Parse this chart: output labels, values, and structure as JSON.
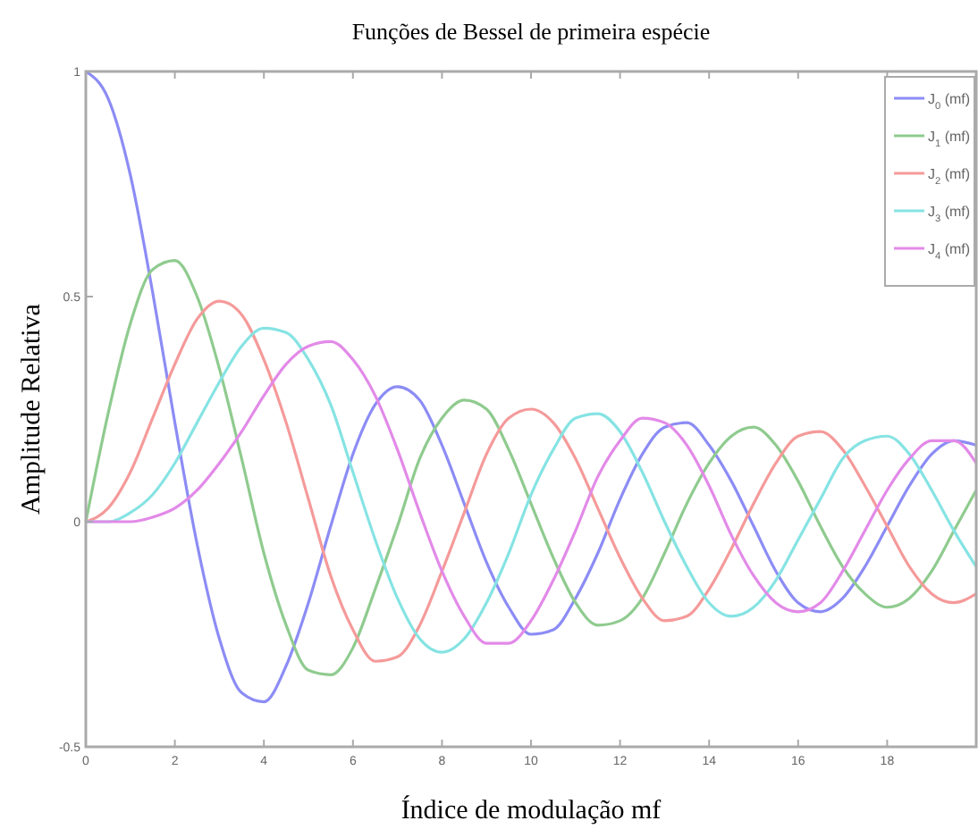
{
  "chart_data": {
    "type": "line",
    "title": "Funções de Bessel de primeira espécie",
    "xlabel": "Índice de modulação mf",
    "ylabel": "Amplitude Relativa",
    "x": [
      0,
      0.5,
      1,
      1.5,
      2,
      2.5,
      3,
      3.5,
      4,
      4.5,
      5,
      5.5,
      6,
      6.5,
      7,
      7.5,
      8,
      8.5,
      9,
      9.5,
      10,
      10.5,
      11,
      11.5,
      12,
      12.5,
      13,
      13.5,
      14,
      14.5,
      15,
      15.5,
      16,
      16.5,
      17,
      17.5,
      18,
      18.5,
      19,
      19.5,
      20
    ],
    "series": [
      {
        "name": "J$_{0}$ (mf)",
        "color": "#8c8cf5",
        "values": [
          1,
          0.94,
          0.77,
          0.51,
          0.22,
          -0.05,
          -0.26,
          -0.38,
          -0.4,
          -0.32,
          -0.18,
          -0.01,
          0.15,
          0.26,
          0.3,
          0.27,
          0.17,
          0.04,
          -0.09,
          -0.19,
          -0.25,
          -0.24,
          -0.17,
          -0.07,
          0.05,
          0.15,
          0.21,
          0.22,
          0.17,
          0.09,
          -0.01,
          -0.11,
          -0.18,
          -0.2,
          -0.17,
          -0.1,
          -0.01,
          0.08,
          0.15,
          0.18,
          0.17
        ]
      },
      {
        "name": "J$_{1}$ (mf)",
        "color": "#8fcb8f",
        "values": [
          0,
          0.24,
          0.44,
          0.56,
          0.58,
          0.5,
          0.34,
          0.14,
          -0.07,
          -0.23,
          -0.33,
          -0.34,
          -0.28,
          -0.15,
          -0.01,
          0.14,
          0.23,
          0.27,
          0.25,
          0.16,
          0.04,
          -0.08,
          -0.18,
          -0.23,
          -0.22,
          -0.17,
          -0.07,
          0.04,
          0.13,
          0.19,
          0.21,
          0.17,
          0.09,
          -0.01,
          -0.1,
          -0.16,
          -0.19,
          -0.17,
          -0.11,
          -0.02,
          0.07
        ]
      },
      {
        "name": "J$_{2}$ (mf)",
        "color": "#f59a9a",
        "values": [
          0,
          0.03,
          0.11,
          0.23,
          0.35,
          0.45,
          0.49,
          0.46,
          0.36,
          0.22,
          0.05,
          -0.12,
          -0.24,
          -0.31,
          -0.3,
          -0.23,
          -0.11,
          0.02,
          0.15,
          0.23,
          0.25,
          0.22,
          0.14,
          0.03,
          -0.08,
          -0.17,
          -0.22,
          -0.21,
          -0.15,
          -0.06,
          0.04,
          0.13,
          0.19,
          0.2,
          0.16,
          0.08,
          -0.01,
          -0.1,
          -0.16,
          -0.18,
          -0.16
        ]
      },
      {
        "name": "J$_{3}$ (mf)",
        "color": "#86e3e3",
        "values": [
          0,
          0,
          0.02,
          0.06,
          0.13,
          0.22,
          0.31,
          0.39,
          0.43,
          0.42,
          0.36,
          0.26,
          0.11,
          -0.04,
          -0.17,
          -0.26,
          -0.29,
          -0.26,
          -0.18,
          -0.07,
          0.06,
          0.16,
          0.23,
          0.24,
          0.2,
          0.11,
          0,
          -0.1,
          -0.18,
          -0.21,
          -0.19,
          -0.13,
          -0.04,
          0.05,
          0.14,
          0.18,
          0.19,
          0.15,
          0.07,
          -0.02,
          -0.1
        ]
      },
      {
        "name": "J$_{4}$ (mf)",
        "color": "#e28ae8",
        "values": [
          0,
          0,
          0,
          0.01,
          0.03,
          0.07,
          0.13,
          0.2,
          0.28,
          0.35,
          0.39,
          0.4,
          0.36,
          0.28,
          0.16,
          0.02,
          -0.11,
          -0.21,
          -0.27,
          -0.27,
          -0.22,
          -0.13,
          -0.02,
          0.1,
          0.18,
          0.23,
          0.22,
          0.17,
          0.08,
          -0.03,
          -0.12,
          -0.18,
          -0.2,
          -0.18,
          -0.11,
          -0.02,
          0.07,
          0.14,
          0.18,
          0.18,
          0.13
        ]
      }
    ],
    "xlim": [
      0,
      20
    ],
    "xticks": [
      0,
      2,
      4,
      6,
      8,
      10,
      12,
      14,
      16,
      18
    ],
    "ylim": [
      -0.5,
      1
    ],
    "yticks": [
      -0.5,
      0,
      0.5,
      1
    ],
    "legend": "top right",
    "grid": false
  }
}
